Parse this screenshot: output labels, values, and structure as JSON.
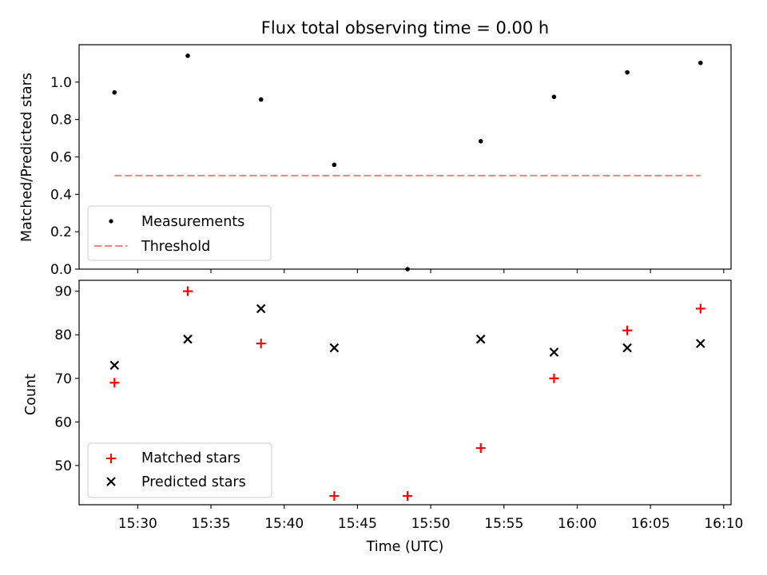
{
  "figure": {
    "title": "Flux total observing time = 0.00 h",
    "xlabel": "Time (UTC)"
  },
  "chart_data": [
    {
      "type": "scatter",
      "title": "Flux total observing time = 0.00 h",
      "xlabel": "",
      "ylabel": "Matched/Predicted stars",
      "xlim": [
        "15:26",
        "16:10.5"
      ],
      "ylim": [
        0,
        1.2
      ],
      "yticks": [
        0.0,
        0.2,
        0.4,
        0.6,
        0.8,
        1.0
      ],
      "ytick_labels": [
        "0.0",
        "0.2",
        "0.4",
        "0.6",
        "0.8",
        "1.0"
      ],
      "x": [
        "15:28:25",
        "15:33:25",
        "15:38:25",
        "15:43:25",
        "15:48:25",
        "15:53:25",
        "15:58:25",
        "16:03:25",
        "16:08:25"
      ],
      "series": [
        {
          "name": "Measurements",
          "marker": "dot",
          "color": "#000000",
          "values": [
            0.945,
            1.141,
            0.907,
            0.558,
            0.0,
            0.684,
            0.921,
            1.052,
            1.103
          ]
        },
        {
          "name": "Threshold",
          "marker": "dashed-line",
          "color": "#ff7f7f",
          "values": [
            0.5,
            0.5
          ]
        }
      ],
      "legend": "lower-left",
      "grid": false
    },
    {
      "type": "scatter",
      "xlabel": "Time (UTC)",
      "ylabel": "Count",
      "xlim": [
        "15:26",
        "16:10.5"
      ],
      "ylim": [
        41,
        92.5
      ],
      "xticks": [
        "15:30",
        "15:35",
        "15:40",
        "15:45",
        "15:50",
        "15:55",
        "16:00",
        "16:05",
        "16:10"
      ],
      "yticks": [
        50,
        60,
        70,
        80,
        90
      ],
      "ytick_labels": [
        "50",
        "60",
        "70",
        "80",
        "90"
      ],
      "x": [
        "15:28:25",
        "15:33:25",
        "15:38:25",
        "15:43:25",
        "15:48:25",
        "15:53:25",
        "15:58:25",
        "16:03:25",
        "16:08:25"
      ],
      "series": [
        {
          "name": "Matched stars",
          "marker": "plus",
          "color": "#ff0000",
          "values": [
            69,
            90,
            78,
            43,
            43,
            54,
            70,
            81,
            86
          ]
        },
        {
          "name": "Predicted stars",
          "marker": "x",
          "color": "#000000",
          "values": [
            73,
            79,
            86,
            77,
            null,
            79,
            76,
            77,
            78
          ]
        }
      ],
      "legend": "lower-left",
      "grid": false
    }
  ]
}
